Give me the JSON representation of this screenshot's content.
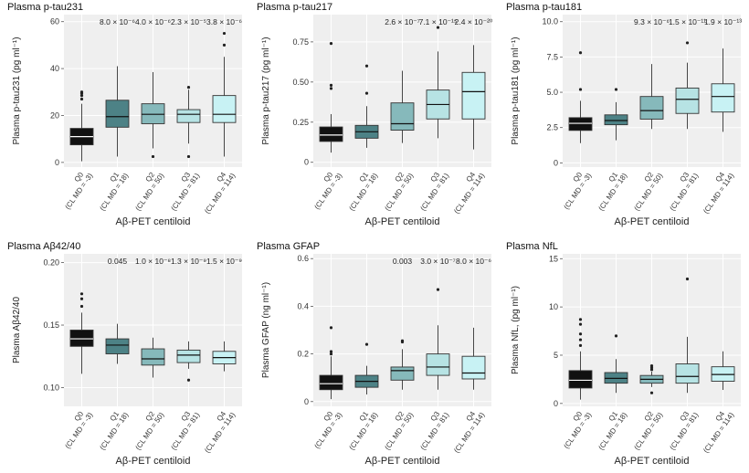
{
  "figure": {
    "colors": {
      "Q0": "#111111",
      "Q1": "#4d8286",
      "Q2": "#86b9bb",
      "Q3": "#b7e3e4",
      "Q4": "#c8f2f4",
      "panel_bg": "#efefef",
      "grid": "#ffffff"
    }
  },
  "chart_data": [
    {
      "type": "box",
      "title": "Plasma p-tau231",
      "ylabel": "Plasma p-tau231 (pg ml⁻¹)",
      "xlabel": "Aβ-PET centiloid",
      "categories": [
        "Q0",
        "Q1",
        "Q2",
        "Q3",
        "Q4"
      ],
      "category_sublabels": [
        "(CL MD = -3)",
        "(CL MD = 18)",
        "(CL MD = 50)",
        "(CL MD = 81)",
        "(CL MD = 114)"
      ],
      "ylim": [
        -2,
        63
      ],
      "yticks": [
        0,
        20,
        40,
        60
      ],
      "ytick_labels": [
        "0",
        "20",
        "40",
        "60"
      ],
      "p_values": [
        "",
        "8.0 × 10⁻⁶",
        "4.0 × 10⁻⁶",
        "2.3 × 10⁻⁵",
        "3.8 × 10⁻⁶"
      ],
      "boxes": [
        {
          "whisker_low": 0.5,
          "q1": 7.5,
          "median": 11,
          "q3": 14.5,
          "whisker_high": 25,
          "outliers": [
            27,
            28.5,
            29.5,
            30
          ]
        },
        {
          "whisker_low": 2.5,
          "q1": 15,
          "median": 19.5,
          "q3": 26.5,
          "whisker_high": 41,
          "outliers": []
        },
        {
          "whisker_low": 6,
          "q1": 16.5,
          "median": 20.5,
          "q3": 25,
          "whisker_high": 38.5,
          "outliers": [
            2.5
          ]
        },
        {
          "whisker_low": 8,
          "q1": 17,
          "median": 20.5,
          "q3": 22.5,
          "whisker_high": 31,
          "outliers": [
            2.5,
            32
          ]
        },
        {
          "whisker_low": 2.5,
          "q1": 17,
          "median": 20.5,
          "q3": 28.5,
          "whisker_high": 45,
          "outliers": [
            50,
            55
          ]
        }
      ]
    },
    {
      "type": "box",
      "title": "Plasma p-tau217",
      "ylabel": "Plasma p-tau217 (pg ml⁻¹)",
      "xlabel": "Aβ-PET centiloid",
      "categories": [
        "Q0",
        "Q1",
        "Q2",
        "Q3",
        "Q4"
      ],
      "category_sublabels": [
        "(CL MD = -3)",
        "(CL MD = 18)",
        "(CL MD = 50)",
        "(CL MD = 81)",
        "(CL MD = 114)"
      ],
      "ylim": [
        -0.03,
        0.92
      ],
      "yticks": [
        0,
        0.25,
        0.5,
        0.75
      ],
      "ytick_labels": [
        "0",
        "0.25",
        "0.50",
        "0.75"
      ],
      "p_values": [
        "",
        "",
        "2.6 × 10⁻⁷",
        "7.1 × 10⁻¹⁵",
        "2.4 × 10⁻²⁰"
      ],
      "boxes": [
        {
          "whisker_low": 0.06,
          "q1": 0.13,
          "median": 0.17,
          "q3": 0.22,
          "whisker_high": 0.3,
          "outliers": [
            0.46,
            0.48,
            0.74
          ]
        },
        {
          "whisker_low": 0.09,
          "q1": 0.15,
          "median": 0.19,
          "q3": 0.23,
          "whisker_high": 0.35,
          "outliers": [
            0.43,
            0.6
          ]
        },
        {
          "whisker_low": 0.12,
          "q1": 0.2,
          "median": 0.24,
          "q3": 0.37,
          "whisker_high": 0.57,
          "outliers": []
        },
        {
          "whisker_low": 0.15,
          "q1": 0.27,
          "median": 0.36,
          "q3": 0.45,
          "whisker_high": 0.69,
          "outliers": [
            0.84
          ]
        },
        {
          "whisker_low": 0.08,
          "q1": 0.27,
          "median": 0.44,
          "q3": 0.56,
          "whisker_high": 0.73,
          "outliers": []
        }
      ]
    },
    {
      "type": "box",
      "title": "Plasma p-tau181",
      "ylabel": "Plasma p-tau181 (pg ml⁻¹)",
      "xlabel": "Aβ-PET centiloid",
      "categories": [
        "Q0",
        "Q1",
        "Q2",
        "Q3",
        "Q4"
      ],
      "category_sublabels": [
        "(CL MD = -3)",
        "(CL MD = 18)",
        "(CL MD = 50)",
        "(CL MD = 81)",
        "(CL MD = 114)"
      ],
      "ylim": [
        -0.3,
        10.5
      ],
      "yticks": [
        0,
        2.5,
        5,
        7.5,
        10
      ],
      "ytick_labels": [
        "0",
        "2.5",
        "5.0",
        "7.5",
        "10.0"
      ],
      "p_values": [
        "",
        "",
        "9.3 × 10⁻⁶",
        "1.5 × 10⁻¹¹",
        "1.9 × 10⁻¹³"
      ],
      "boxes": [
        {
          "whisker_low": 1.4,
          "q1": 2.3,
          "median": 2.8,
          "q3": 3.2,
          "whisker_high": 4.4,
          "outliers": [
            5.2,
            7.8
          ]
        },
        {
          "whisker_low": 1.6,
          "q1": 2.7,
          "median": 3.0,
          "q3": 3.4,
          "whisker_high": 4.3,
          "outliers": [
            5.2
          ]
        },
        {
          "whisker_low": 2.4,
          "q1": 3.1,
          "median": 3.7,
          "q3": 4.7,
          "whisker_high": 7.0,
          "outliers": []
        },
        {
          "whisker_low": 2.4,
          "q1": 3.5,
          "median": 4.5,
          "q3": 5.3,
          "whisker_high": 7.1,
          "outliers": [
            8.5
          ]
        },
        {
          "whisker_low": 2.2,
          "q1": 3.6,
          "median": 4.7,
          "q3": 5.6,
          "whisker_high": 8.1,
          "outliers": []
        }
      ]
    },
    {
      "type": "box",
      "title": "Plasma Aβ42/40",
      "ylabel": "Plasma Aβ42/40",
      "xlabel": "Aβ-PET centiloid",
      "categories": [
        "Q0",
        "Q1",
        "Q2",
        "Q3",
        "Q4"
      ],
      "category_sublabels": [
        "(CL MD = -3)",
        "(CL MD = 18)",
        "(CL MD = 50)",
        "(CL MD = 81)",
        "(CL MD = 114)"
      ],
      "ylim": [
        0.085,
        0.207
      ],
      "yticks": [
        0.1,
        0.15,
        0.2
      ],
      "ytick_labels": [
        "0.10",
        "0.15",
        "0.20"
      ],
      "p_values": [
        "",
        "0.045",
        "1.0 × 10⁻⁸",
        "1.3 × 10⁻⁹",
        "1.5 × 10⁻⁹"
      ],
      "boxes": [
        {
          "whisker_low": 0.111,
          "q1": 0.133,
          "median": 0.139,
          "q3": 0.146,
          "whisker_high": 0.16,
          "outliers": [
            0.165,
            0.171,
            0.175
          ]
        },
        {
          "whisker_low": 0.119,
          "q1": 0.127,
          "median": 0.134,
          "q3": 0.139,
          "whisker_high": 0.151,
          "outliers": []
        },
        {
          "whisker_low": 0.108,
          "q1": 0.118,
          "median": 0.123,
          "q3": 0.131,
          "whisker_high": 0.14,
          "outliers": []
        },
        {
          "whisker_low": 0.115,
          "q1": 0.12,
          "median": 0.126,
          "q3": 0.13,
          "whisker_high": 0.137,
          "outliers": [
            0.106
          ]
        },
        {
          "whisker_low": 0.113,
          "q1": 0.119,
          "median": 0.124,
          "q3": 0.129,
          "whisker_high": 0.137,
          "outliers": []
        }
      ]
    },
    {
      "type": "box",
      "title": "Plasma GFAP",
      "ylabel": "Plasma GFAP (ng ml⁻¹)",
      "xlabel": "Aβ-PET centiloid",
      "categories": [
        "Q0",
        "Q1",
        "Q2",
        "Q3",
        "Q4"
      ],
      "category_sublabels": [
        "(CL MD = -3)",
        "(CL MD = 18)",
        "(CL MD = 50)",
        "(CL MD = 81)",
        "(CL MD = 114)"
      ],
      "ylim": [
        -0.02,
        0.62
      ],
      "yticks": [
        0,
        0.2,
        0.4,
        0.6
      ],
      "ytick_labels": [
        "0",
        "0.2",
        "0.4",
        "0.6"
      ],
      "p_values": [
        "",
        "",
        "0.003",
        "3.0 × 10⁻⁷",
        "8.0 × 10⁻⁶"
      ],
      "boxes": [
        {
          "whisker_low": 0.01,
          "q1": 0.05,
          "median": 0.075,
          "q3": 0.11,
          "whisker_high": 0.19,
          "outliers": [
            0.2,
            0.21,
            0.31
          ]
        },
        {
          "whisker_low": 0.03,
          "q1": 0.06,
          "median": 0.085,
          "q3": 0.11,
          "whisker_high": 0.15,
          "outliers": [
            0.24
          ]
        },
        {
          "whisker_low": 0.05,
          "q1": 0.09,
          "median": 0.13,
          "q3": 0.145,
          "whisker_high": 0.22,
          "outliers": [
            0.25,
            0.255
          ]
        },
        {
          "whisker_low": 0.05,
          "q1": 0.11,
          "median": 0.145,
          "q3": 0.2,
          "whisker_high": 0.32,
          "outliers": [
            0.47
          ]
        },
        {
          "whisker_low": 0.05,
          "q1": 0.095,
          "median": 0.12,
          "q3": 0.19,
          "whisker_high": 0.31,
          "outliers": []
        }
      ]
    },
    {
      "type": "box",
      "title": "Plasma NfL",
      "ylabel": "Plasma NfL, (pg ml⁻¹)",
      "xlabel": "Aβ-PET centiloid",
      "categories": [
        "Q0",
        "Q1",
        "Q2",
        "Q3",
        "Q4"
      ],
      "category_sublabels": [
        "(CL MD = -3)",
        "(CL MD = 18)",
        "(CL MD = 50)",
        "(CL MD = 81)",
        "(CL MD = 114)"
      ],
      "ylim": [
        -0.3,
        15.5
      ],
      "yticks": [
        0,
        5,
        10,
        15
      ],
      "ytick_labels": [
        "0",
        "5",
        "10",
        "15"
      ],
      "p_values": [
        "",
        "",
        "",
        "",
        ""
      ],
      "boxes": [
        {
          "whisker_low": 0.4,
          "q1": 1.6,
          "median": 2.4,
          "q3": 3.4,
          "whisker_high": 5.4,
          "outliers": [
            6,
            6.6,
            7.2,
            8.2,
            8.7
          ]
        },
        {
          "whisker_low": 1.1,
          "q1": 2.1,
          "median": 2.6,
          "q3": 3.2,
          "whisker_high": 4.6,
          "outliers": [
            7
          ]
        },
        {
          "whisker_low": 1.7,
          "q1": 2.1,
          "median": 2.5,
          "q3": 2.9,
          "whisker_high": 3.3,
          "outliers": [
            1.1,
            3.5,
            3.7,
            3.9
          ]
        },
        {
          "whisker_low": 1.1,
          "q1": 2.1,
          "median": 2.8,
          "q3": 4.1,
          "whisker_high": 6.9,
          "outliers": [
            12.9
          ]
        },
        {
          "whisker_low": 1.4,
          "q1": 2.3,
          "median": 3.0,
          "q3": 3.8,
          "whisker_high": 5.4,
          "outliers": []
        }
      ]
    }
  ]
}
